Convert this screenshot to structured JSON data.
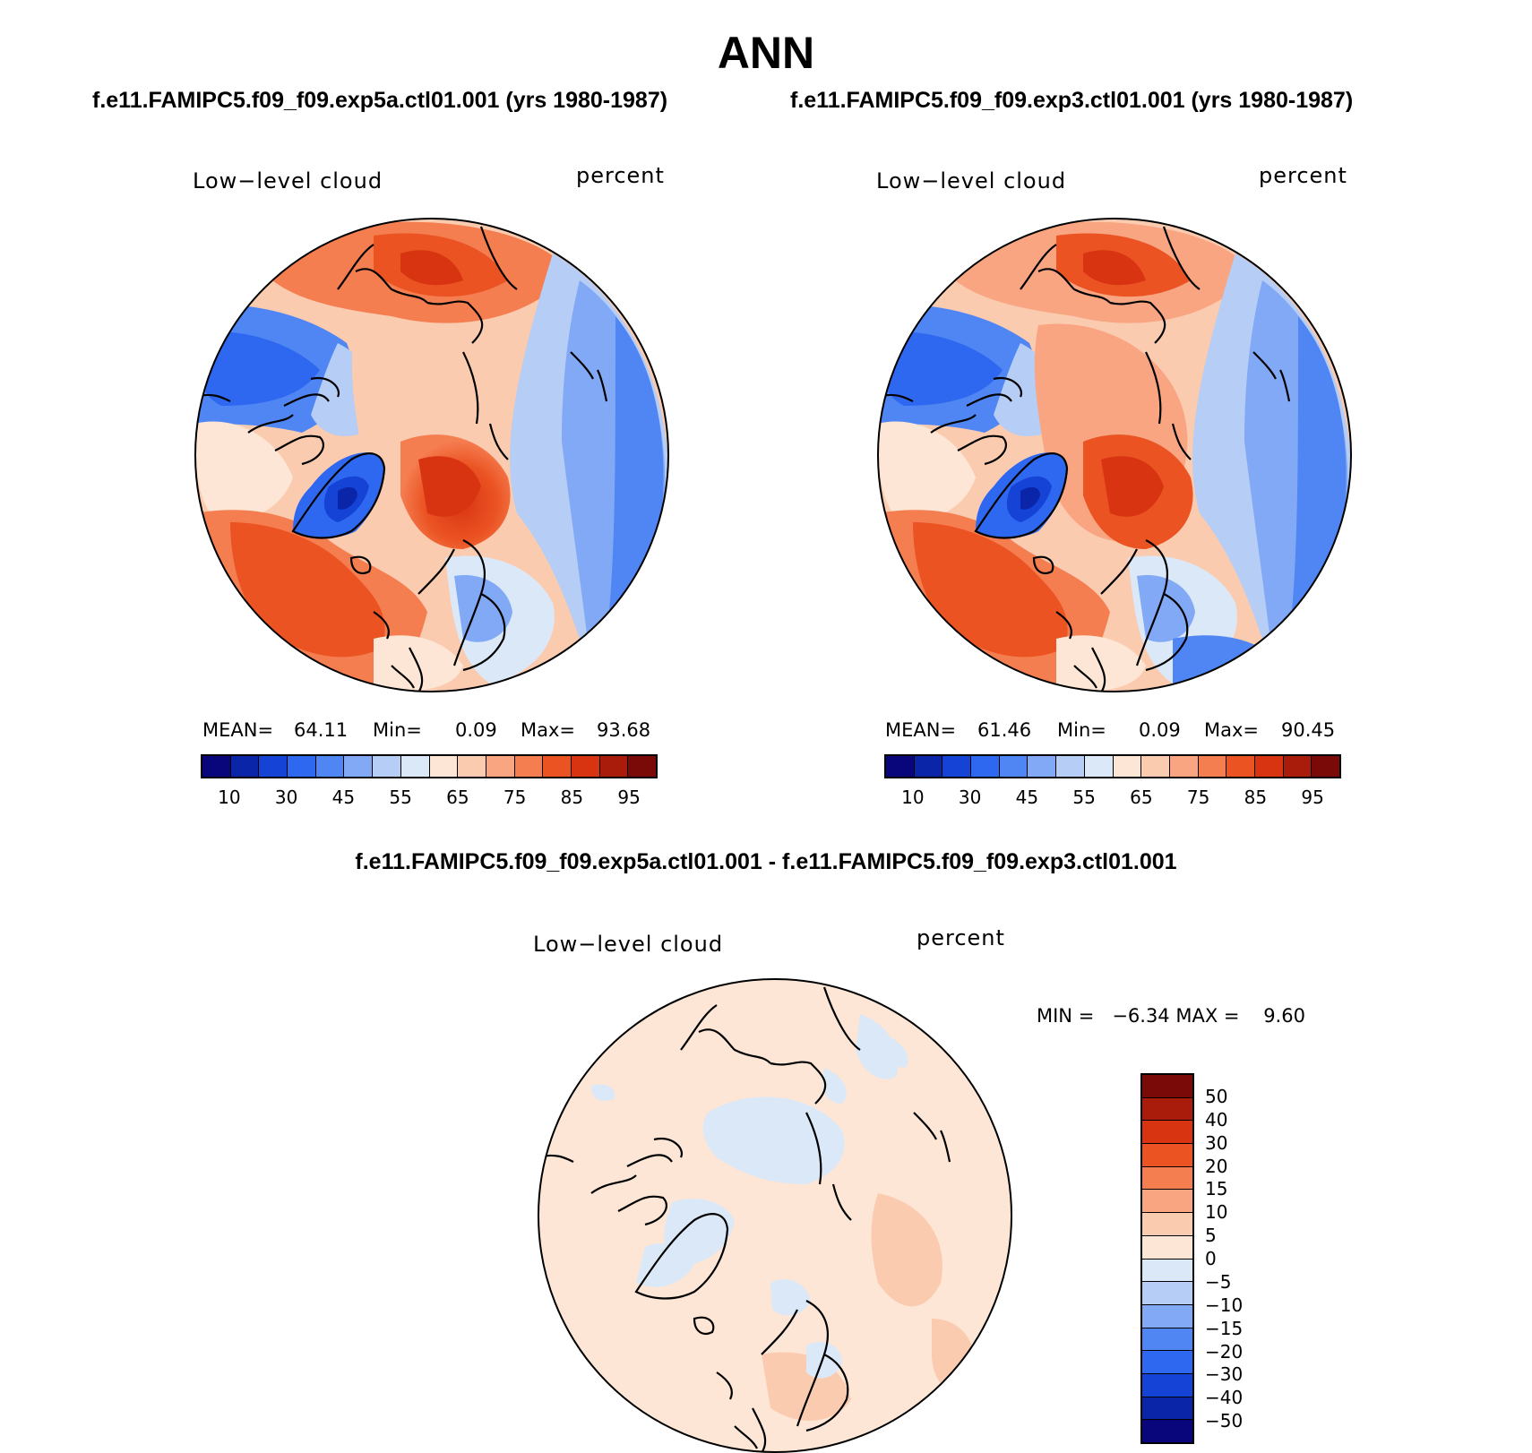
{
  "figure": {
    "title": "ANN",
    "case1_title": "f.e11.FAMIPC5.f09_f09.exp5a.ctl01.001 (yrs 1980-1987)",
    "case2_title": "f.e11.FAMIPC5.f09_f09.exp3.ctl01.001 (yrs 1980-1987)",
    "diff_title": "f.e11.FAMIPC5.f09_f09.exp5a.ctl01.001 - f.e11.FAMIPC5.f09_f09.exp3.ctl01.001"
  },
  "panels": {
    "left": {
      "variable": "Low−level cloud",
      "units": "percent",
      "mean_label": "MEAN=",
      "mean": "64.11",
      "min_label": "Min=",
      "min": "0.09",
      "max_label": "Max=",
      "max": "93.68"
    },
    "right": {
      "variable": "Low−level cloud",
      "units": "percent",
      "mean_label": "MEAN=",
      "mean": "61.46",
      "min_label": "Min=",
      "min": "0.09",
      "max_label": "Max=",
      "max": "90.45"
    },
    "diff": {
      "variable": "Low−level cloud",
      "units": "percent",
      "minmax_text": "MIN =   −6.34 MAX =    9.60"
    }
  },
  "colorbar_abs": {
    "colors": [
      "#08067a",
      "#0b25a8",
      "#1543d6",
      "#2f68f0",
      "#4f86f3",
      "#82a9f5",
      "#b6cdf6",
      "#dbe8f8",
      "#fde6d6",
      "#fbcbb0",
      "#f9a582",
      "#f57e51",
      "#eb5323",
      "#d83412",
      "#a91c0c",
      "#7a0a08"
    ],
    "tick_labels": [
      "10",
      "30",
      "45",
      "55",
      "65",
      "75",
      "85",
      "95"
    ]
  },
  "colorbar_diff": {
    "colors": [
      "#7a0a08",
      "#a91c0c",
      "#d83412",
      "#eb5323",
      "#f57e51",
      "#f9a582",
      "#fbcbb0",
      "#fde6d6",
      "#dbe8f8",
      "#b6cdf6",
      "#82a9f5",
      "#4f86f3",
      "#2f68f0",
      "#1543d6",
      "#0b25a8",
      "#08067a"
    ],
    "tick_labels": [
      "50",
      "40",
      "30",
      "20",
      "15",
      "10",
      "5",
      "0",
      "−5",
      "−10",
      "−15",
      "−20",
      "−30",
      "−40",
      "−50"
    ]
  },
  "map": {
    "projection": "north-polar-stereographic",
    "coastline_color": "#000000",
    "ocean_base_abs": "#fde6d6",
    "diff_base": "#fde6d6"
  }
}
